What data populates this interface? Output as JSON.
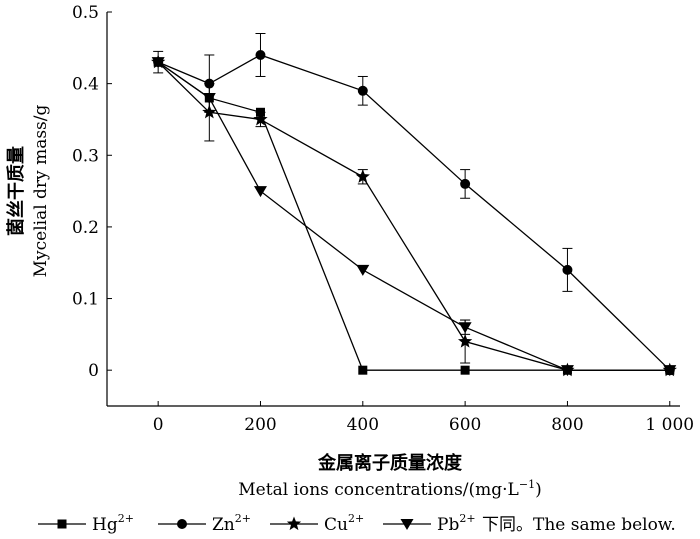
{
  "chart_data": {
    "type": "line",
    "xlabel_cn": "金属离子质量浓度",
    "xlabel_en": "Metal ions concentrations/(mg·L",
    "xlabel_en_sup": "−1",
    "xlabel_en_tail": ")",
    "ylabel_cn": "菌丝干质量",
    "ylabel_en": "Mycelial dry mass/g",
    "x": [
      0,
      100,
      200,
      400,
      600,
      800,
      1000
    ],
    "xlim": [
      -100,
      1020
    ],
    "ylim": [
      -0.05,
      0.5
    ],
    "x_ticks": [
      0,
      200,
      400,
      600,
      800,
      1000
    ],
    "x_tick_labels": [
      "0",
      "200",
      "400",
      "600",
      "800",
      "1 000"
    ],
    "y_ticks": [
      0,
      0.1,
      0.2,
      0.3,
      0.4,
      0.5
    ],
    "y_tick_labels": [
      "0",
      "0.1",
      "0.2",
      "0.3",
      "0.4",
      "0.5"
    ],
    "series": [
      {
        "name": "Hg",
        "sup": "2+",
        "marker": "square",
        "values": [
          0.43,
          0.38,
          0.36,
          0,
          0,
          0,
          0
        ],
        "errors": [
          0,
          0,
          0,
          0,
          0,
          0,
          0
        ]
      },
      {
        "name": "Zn",
        "sup": "2+",
        "marker": "circle",
        "values": [
          0.43,
          0.4,
          0.44,
          0.39,
          0.26,
          0.14,
          0
        ],
        "errors": [
          0,
          0.04,
          0.03,
          0.02,
          0.02,
          0.03,
          0
        ]
      },
      {
        "name": "Cu",
        "sup": "2+",
        "marker": "star",
        "values": [
          0.43,
          0.36,
          0.35,
          0.27,
          0.04,
          0,
          0
        ],
        "errors": [
          0,
          0.04,
          0.01,
          0.01,
          0.03,
          0,
          0
        ]
      },
      {
        "name": "Pb",
        "sup": "2+",
        "marker": "triangle-down",
        "values": [
          0.43,
          0.38,
          0.25,
          0.14,
          0.06,
          0,
          0
        ],
        "errors": [
          0.015,
          0,
          0,
          0,
          0.01,
          0,
          0
        ]
      }
    ],
    "legend_note": "下同。The same below.",
    "legend_position": "bottom",
    "grid": false,
    "colors": {
      "line": "#000000",
      "background": "#ffffff"
    }
  }
}
